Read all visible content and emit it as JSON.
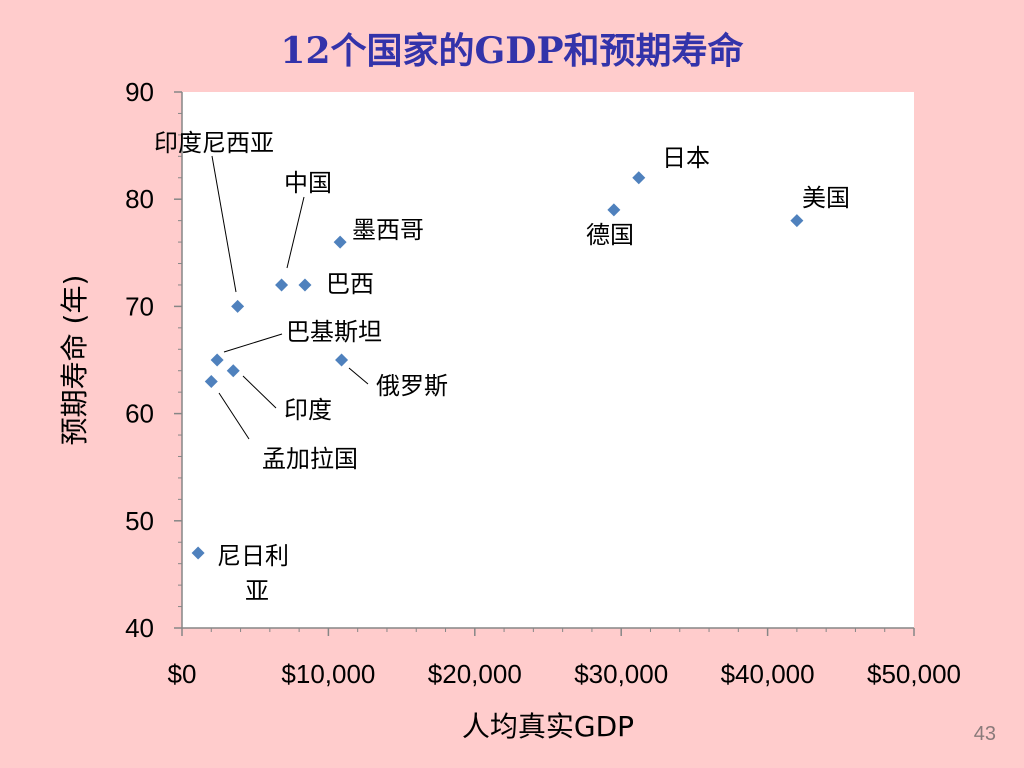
{
  "slide": {
    "title": "12个国家的GDP和预期寿命",
    "page_number": "43"
  },
  "colors": {
    "background": "#ffcccc",
    "title": "#3333aa",
    "marker": "#4f81bd"
  },
  "chart_data": {
    "type": "scatter",
    "title": "",
    "xlabel": "人均真实GDP",
    "ylabel": "预期寿命 (年)",
    "xlim": [
      0,
      50000
    ],
    "ylim": [
      40,
      90
    ],
    "x_ticks": [
      {
        "value": 0,
        "label": "$0"
      },
      {
        "value": 10000,
        "label": "$10,000"
      },
      {
        "value": 20000,
        "label": "$20,000"
      },
      {
        "value": 30000,
        "label": "$30,000"
      },
      {
        "value": 40000,
        "label": "$40,000"
      },
      {
        "value": 50000,
        "label": "$50,000"
      }
    ],
    "y_ticks": [
      {
        "value": 40,
        "label": "40"
      },
      {
        "value": 50,
        "label": "50"
      },
      {
        "value": 60,
        "label": "60"
      },
      {
        "value": 70,
        "label": "70"
      },
      {
        "value": 80,
        "label": "80"
      },
      {
        "value": 90,
        "label": "90"
      }
    ],
    "grid": false,
    "marker": "diamond",
    "points": [
      {
        "label": "印度尼西亚",
        "x": 3800,
        "y": 70
      },
      {
        "label": "中国",
        "x": 6800,
        "y": 72
      },
      {
        "label": "巴西",
        "x": 8400,
        "y": 72
      },
      {
        "label": "墨西哥",
        "x": 10800,
        "y": 76
      },
      {
        "label": "日本",
        "x": 31200,
        "y": 82
      },
      {
        "label": "德国",
        "x": 29500,
        "y": 79
      },
      {
        "label": "美国",
        "x": 42000,
        "y": 78
      },
      {
        "label": "巴基斯坦",
        "x": 2400,
        "y": 65
      },
      {
        "label": "俄罗斯",
        "x": 10900,
        "y": 65
      },
      {
        "label": "印度",
        "x": 3500,
        "y": 64
      },
      {
        "label": "孟加拉国",
        "x": 2000,
        "y": 63
      },
      {
        "label": "尼日利亚",
        "x": 1100,
        "y": 47
      }
    ]
  }
}
